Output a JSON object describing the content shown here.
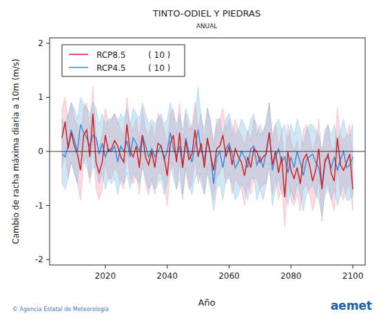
{
  "chart_data": {
    "type": "line",
    "title": "TINTO-ODIEL Y PIEDRAS",
    "subtitle": "ANUAL",
    "x_label": "Año",
    "y_label": "Cambio de racha máxima diaria a 10m (m/s)",
    "credit": "© Agencia Estatal de Meteorología",
    "logo": "aemet",
    "legend": "upper left",
    "baseline": 0,
    "xlim": [
      2002,
      2104
    ],
    "ylim": [
      -2.1,
      2.1
    ],
    "xticks": [
      2020,
      2040,
      2060,
      2080,
      2100
    ],
    "yticks": [
      -2,
      -1,
      0,
      1,
      2
    ],
    "x": [
      2006,
      2007,
      2008,
      2009,
      2010,
      2011,
      2012,
      2013,
      2014,
      2015,
      2016,
      2017,
      2018,
      2019,
      2020,
      2021,
      2022,
      2023,
      2024,
      2025,
      2026,
      2027,
      2028,
      2029,
      2030,
      2031,
      2032,
      2033,
      2034,
      2035,
      2036,
      2037,
      2038,
      2039,
      2040,
      2041,
      2042,
      2043,
      2044,
      2045,
      2046,
      2047,
      2048,
      2049,
      2050,
      2051,
      2052,
      2053,
      2054,
      2055,
      2056,
      2057,
      2058,
      2059,
      2060,
      2061,
      2062,
      2063,
      2064,
      2065,
      2066,
      2067,
      2068,
      2069,
      2070,
      2071,
      2072,
      2073,
      2074,
      2075,
      2076,
      2077,
      2078,
      2079,
      2080,
      2081,
      2082,
      2083,
      2084,
      2085,
      2086,
      2087,
      2088,
      2089,
      2090,
      2091,
      2092,
      2093,
      2094,
      2095,
      2096,
      2097,
      2098,
      2099,
      2100
    ],
    "series": [
      {
        "name": "RCP8.5",
        "models_label": "( 10 )",
        "color": "#d42020",
        "values": [
          0.25,
          0.55,
          0.05,
          0.35,
          0.1,
          -0.05,
          -0.35,
          0.3,
          0.4,
          -0.1,
          0.7,
          -0.2,
          -0.4,
          -0.2,
          0.3,
          0.0,
          0.05,
          0.2,
          0.1,
          -0.1,
          -0.2,
          0.5,
          0.0,
          -0.1,
          0.1,
          -0.3,
          0.3,
          -0.1,
          -0.25,
          0.0,
          -0.3,
          0.15,
          0.1,
          -0.1,
          -0.45,
          0.15,
          0.3,
          -0.2,
          0.35,
          -0.3,
          0.2,
          -0.15,
          -0.05,
          0.4,
          -0.1,
          0.15,
          -0.3,
          0.25,
          -0.05,
          -0.35,
          0.05,
          0.1,
          0.3,
          -0.1,
          0.1,
          -0.25,
          0.05,
          -0.1,
          -0.2,
          -0.45,
          -0.1,
          -0.3,
          0.05,
          0.0,
          -0.2,
          -0.1,
          -0.05,
          0.35,
          -0.25,
          0.0,
          -0.4,
          -0.1,
          -0.85,
          0.0,
          -0.35,
          -0.5,
          -0.3,
          -0.6,
          -0.15,
          -0.05,
          -0.25,
          -0.55,
          -0.35,
          0.05,
          -0.7,
          -0.2,
          -0.05,
          -0.4,
          -0.55,
          0.25,
          -0.25,
          -0.35,
          -0.2,
          -0.05,
          -0.7
        ],
        "upper": [
          0.8,
          1.0,
          0.6,
          0.9,
          0.6,
          0.5,
          0.2,
          0.8,
          0.9,
          0.4,
          1.2,
          0.3,
          0.1,
          0.3,
          0.8,
          0.5,
          0.6,
          0.7,
          0.6,
          0.4,
          0.3,
          1.0,
          0.5,
          0.4,
          0.6,
          0.2,
          0.8,
          0.4,
          0.3,
          0.5,
          0.2,
          0.7,
          0.6,
          0.4,
          0.1,
          0.7,
          0.8,
          0.3,
          0.9,
          0.2,
          0.7,
          0.4,
          0.5,
          0.9,
          0.4,
          0.7,
          0.2,
          0.8,
          0.5,
          0.2,
          0.6,
          0.6,
          0.8,
          0.4,
          0.6,
          0.3,
          0.6,
          0.4,
          0.3,
          0.1,
          0.4,
          0.2,
          0.6,
          0.5,
          0.3,
          0.4,
          0.5,
          0.9,
          0.3,
          0.5,
          0.1,
          0.4,
          -0.3,
          0.5,
          0.2,
          0.0,
          0.2,
          -0.1,
          0.4,
          0.5,
          0.3,
          0.0,
          0.2,
          0.6,
          -0.1,
          0.3,
          0.5,
          0.1,
          0.0,
          0.8,
          0.3,
          0.2,
          0.3,
          0.5,
          -0.1
        ],
        "lower": [
          -0.3,
          0.0,
          -0.5,
          -0.2,
          -0.4,
          -0.6,
          -0.9,
          -0.2,
          -0.1,
          -0.6,
          0.2,
          -0.7,
          -0.9,
          -0.7,
          -0.2,
          -0.5,
          -0.5,
          -0.3,
          -0.4,
          -0.6,
          -0.7,
          0.0,
          -0.5,
          -0.6,
          -0.4,
          -0.8,
          -0.2,
          -0.6,
          -0.8,
          -0.5,
          -0.8,
          -0.4,
          -0.4,
          -0.6,
          -1.0,
          -0.4,
          -0.2,
          -0.7,
          -0.2,
          -0.8,
          -0.3,
          -0.7,
          -0.6,
          -0.1,
          -0.6,
          -0.4,
          -0.8,
          -0.3,
          -0.6,
          -0.9,
          -0.5,
          -0.4,
          -0.2,
          -0.6,
          -0.4,
          -0.8,
          -0.5,
          -0.6,
          -0.7,
          -1.0,
          -0.6,
          -0.8,
          -0.5,
          -0.5,
          -0.7,
          -0.6,
          -0.6,
          -0.2,
          -0.8,
          -0.5,
          -0.9,
          -0.6,
          -1.4,
          -0.5,
          -0.9,
          -1.0,
          -0.8,
          -1.1,
          -0.7,
          -0.6,
          -0.8,
          -1.1,
          -0.9,
          -0.5,
          -1.3,
          -0.7,
          -0.6,
          -0.9,
          -1.1,
          -0.3,
          -0.8,
          -0.9,
          -0.7,
          -0.6,
          -1.1
        ]
      },
      {
        "name": "RCP4.5",
        "models_label": "( 10 )",
        "color": "#3a8ee0",
        "values": [
          -0.05,
          -0.1,
          0.1,
          0.4,
          0.2,
          0.0,
          0.5,
          0.35,
          0.25,
          0.1,
          0.3,
          0.25,
          -0.05,
          0.15,
          -0.1,
          0.05,
          0.0,
          0.1,
          -0.2,
          0.1,
          0.0,
          0.2,
          -0.1,
          0.25,
          0.15,
          0.0,
          0.3,
          0.1,
          -0.1,
          0.05,
          -0.1,
          0.0,
          0.1,
          -0.15,
          0.0,
          0.35,
          0.05,
          -0.1,
          0.1,
          -0.3,
          0.25,
          0.0,
          -0.2,
          0.1,
          0.4,
          0.0,
          -0.15,
          0.2,
          -0.05,
          -0.6,
          -0.1,
          0.0,
          -0.3,
          0.05,
          0.15,
          -0.05,
          -0.3,
          -0.2,
          0.0,
          -0.1,
          -0.3,
          0.05,
          0.1,
          -0.25,
          -0.1,
          -0.3,
          0.0,
          0.35,
          -0.35,
          -0.1,
          0.05,
          -0.2,
          -0.1,
          -0.4,
          -0.1,
          -0.3,
          0.0,
          -0.2,
          -0.45,
          -0.15,
          -0.1,
          -0.05,
          -0.2,
          -0.3,
          -0.65,
          -0.15,
          -0.1,
          -0.3,
          -0.1,
          -0.35,
          -0.15,
          0.0,
          -0.3,
          -0.25,
          -0.1
        ],
        "upper": [
          0.6,
          0.5,
          0.7,
          0.9,
          0.8,
          0.6,
          1.0,
          0.9,
          0.8,
          0.7,
          0.9,
          0.8,
          0.5,
          0.7,
          0.5,
          0.6,
          0.6,
          0.7,
          0.5,
          0.7,
          0.6,
          0.8,
          0.5,
          0.8,
          0.7,
          0.6,
          0.9,
          0.7,
          0.5,
          0.6,
          0.5,
          0.6,
          0.7,
          0.5,
          0.6,
          0.9,
          0.7,
          0.5,
          0.7,
          0.4,
          0.8,
          0.6,
          0.4,
          0.7,
          1.2,
          0.6,
          0.4,
          0.8,
          0.6,
          0.1,
          0.5,
          0.6,
          0.3,
          0.6,
          0.7,
          0.5,
          0.3,
          0.4,
          0.6,
          0.5,
          0.3,
          0.6,
          0.7,
          0.3,
          0.5,
          0.3,
          0.6,
          0.9,
          0.2,
          0.5,
          0.6,
          0.4,
          0.5,
          0.2,
          0.5,
          0.3,
          0.6,
          0.4,
          0.1,
          0.4,
          0.5,
          0.5,
          0.4,
          0.3,
          0.0,
          0.4,
          0.5,
          0.3,
          0.5,
          0.2,
          0.4,
          0.6,
          0.3,
          0.3,
          0.5
        ],
        "lower": [
          -0.6,
          -0.7,
          -0.5,
          -0.2,
          -0.4,
          -0.6,
          0.0,
          -0.2,
          -0.3,
          -0.5,
          -0.3,
          -0.3,
          -0.6,
          -0.4,
          -0.7,
          -0.5,
          -0.6,
          -0.5,
          -0.8,
          -0.5,
          -0.6,
          -0.4,
          -0.7,
          -0.4,
          -0.5,
          -0.6,
          -0.3,
          -0.5,
          -0.7,
          -0.6,
          -0.7,
          -0.6,
          -0.5,
          -0.8,
          -0.6,
          -0.2,
          -0.5,
          -0.7,
          -0.5,
          -0.9,
          -0.3,
          -0.6,
          -0.8,
          -0.5,
          -0.4,
          -0.6,
          -0.8,
          -0.4,
          -0.7,
          -1.1,
          -0.7,
          -0.6,
          -0.9,
          -0.5,
          -0.5,
          -0.6,
          -0.9,
          -0.8,
          -0.6,
          -0.7,
          -0.9,
          -0.5,
          -0.5,
          -0.9,
          -0.7,
          -0.9,
          -0.6,
          -0.3,
          -1.0,
          -0.7,
          -0.5,
          -0.8,
          -0.7,
          -1.0,
          -0.7,
          -0.9,
          -0.6,
          -0.8,
          -1.1,
          -0.8,
          -0.7,
          -0.6,
          -0.8,
          -0.9,
          -1.2,
          -0.8,
          -0.7,
          -0.9,
          -0.7,
          -1.0,
          -0.8,
          -0.6,
          -0.9,
          -0.9,
          -0.8
        ]
      }
    ]
  }
}
